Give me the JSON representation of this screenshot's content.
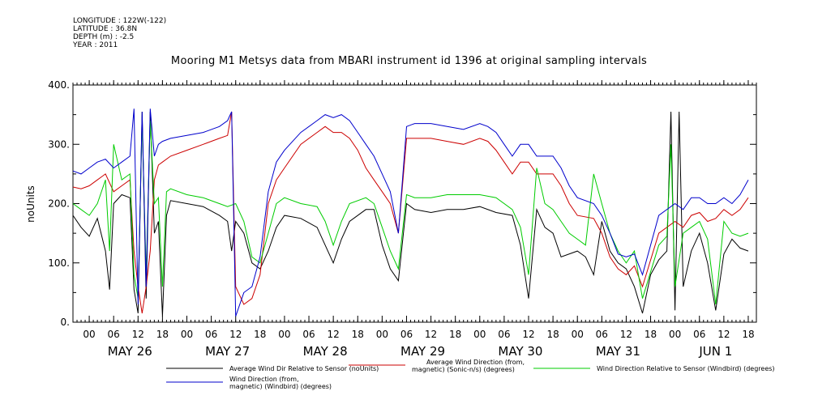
{
  "meta_lines": [
    "LONGITUDE : 122W(-122)",
    "LATITUDE : 36.8N",
    "DEPTH (m) : -2.5",
    "YEAR : 2011"
  ],
  "chart_data": {
    "type": "line",
    "title": "Mooring M1 Metsys data from MBARI instrument id 1396 at original sampling intervals",
    "ylabel": "noUnits",
    "ylim": [
      0,
      400
    ],
    "yticks": [
      0,
      100,
      200,
      300,
      400
    ],
    "ytick_labels": [
      "0.",
      "100.",
      "200.",
      "300.",
      "400."
    ],
    "xlim_hours": [
      -4,
      164
    ],
    "hour_tick_labels": [
      "00",
      "06",
      "12",
      "18",
      "00",
      "06",
      "12",
      "18",
      "00",
      "06",
      "12",
      "18",
      "00",
      "06",
      "12",
      "18",
      "00",
      "06",
      "12",
      "18",
      "00",
      "06",
      "12",
      "18",
      "00",
      "06",
      "12",
      "18"
    ],
    "day_labels": [
      "MAY 26",
      "MAY 27",
      "MAY 28",
      "MAY 29",
      "MAY 30",
      "MAY 31",
      "JUN  1"
    ],
    "series": [
      {
        "name": "Average Wind Dir Relative to Sensor (noUnits)",
        "color": "#000000",
        "points": [
          [
            -4,
            180
          ],
          [
            -2,
            160
          ],
          [
            0,
            145
          ],
          [
            2,
            175
          ],
          [
            4,
            120
          ],
          [
            5,
            55
          ],
          [
            6,
            200
          ],
          [
            8,
            215
          ],
          [
            10,
            210
          ],
          [
            11,
            55
          ],
          [
            12,
            15
          ],
          [
            13,
            355
          ],
          [
            14,
            40
          ],
          [
            15,
            355
          ],
          [
            16,
            150
          ],
          [
            17,
            170
          ],
          [
            18,
            10
          ],
          [
            19,
            180
          ],
          [
            20,
            205
          ],
          [
            24,
            200
          ],
          [
            28,
            195
          ],
          [
            32,
            180
          ],
          [
            34,
            170
          ],
          [
            35,
            120
          ],
          [
            36,
            170
          ],
          [
            38,
            150
          ],
          [
            40,
            100
          ],
          [
            42,
            90
          ],
          [
            44,
            120
          ],
          [
            46,
            160
          ],
          [
            48,
            180
          ],
          [
            52,
            175
          ],
          [
            56,
            160
          ],
          [
            58,
            130
          ],
          [
            60,
            100
          ],
          [
            62,
            140
          ],
          [
            64,
            170
          ],
          [
            68,
            190
          ],
          [
            70,
            190
          ],
          [
            72,
            130
          ],
          [
            74,
            90
          ],
          [
            76,
            70
          ],
          [
            78,
            200
          ],
          [
            80,
            190
          ],
          [
            84,
            185
          ],
          [
            88,
            190
          ],
          [
            92,
            190
          ],
          [
            96,
            195
          ],
          [
            100,
            185
          ],
          [
            104,
            180
          ],
          [
            106,
            130
          ],
          [
            108,
            40
          ],
          [
            110,
            190
          ],
          [
            112,
            160
          ],
          [
            114,
            150
          ],
          [
            116,
            110
          ],
          [
            120,
            120
          ],
          [
            122,
            110
          ],
          [
            124,
            80
          ],
          [
            126,
            170
          ],
          [
            128,
            120
          ],
          [
            130,
            100
          ],
          [
            132,
            90
          ],
          [
            134,
            60
          ],
          [
            136,
            15
          ],
          [
            138,
            80
          ],
          [
            140,
            105
          ],
          [
            142,
            120
          ],
          [
            143,
            355
          ],
          [
            144,
            20
          ],
          [
            145,
            355
          ],
          [
            146,
            60
          ],
          [
            148,
            120
          ],
          [
            150,
            150
          ],
          [
            152,
            100
          ],
          [
            154,
            20
          ],
          [
            156,
            115
          ],
          [
            158,
            140
          ],
          [
            160,
            125
          ],
          [
            162,
            120
          ]
        ]
      },
      {
        "name": "Average Wind Direction (from, magnetic) (Sonic-n/s) (degrees)",
        "color": "#cc0000",
        "points": [
          [
            -4,
            228
          ],
          [
            -2,
            225
          ],
          [
            0,
            230
          ],
          [
            2,
            240
          ],
          [
            4,
            250
          ],
          [
            6,
            220
          ],
          [
            8,
            230
          ],
          [
            10,
            240
          ],
          [
            11,
            120
          ],
          [
            12,
            60
          ],
          [
            13,
            15
          ],
          [
            14,
            60
          ],
          [
            15,
            120
          ],
          [
            16,
            240
          ],
          [
            17,
            265
          ],
          [
            18,
            270
          ],
          [
            20,
            280
          ],
          [
            24,
            290
          ],
          [
            28,
            300
          ],
          [
            32,
            310
          ],
          [
            34,
            315
          ],
          [
            35,
            355
          ],
          [
            36,
            60
          ],
          [
            38,
            30
          ],
          [
            40,
            40
          ],
          [
            42,
            80
          ],
          [
            44,
            200
          ],
          [
            46,
            240
          ],
          [
            48,
            260
          ],
          [
            52,
            300
          ],
          [
            56,
            320
          ],
          [
            58,
            330
          ],
          [
            60,
            320
          ],
          [
            62,
            320
          ],
          [
            64,
            310
          ],
          [
            66,
            290
          ],
          [
            68,
            260
          ],
          [
            70,
            240
          ],
          [
            72,
            220
          ],
          [
            74,
            200
          ],
          [
            76,
            150
          ],
          [
            78,
            310
          ],
          [
            80,
            310
          ],
          [
            84,
            310
          ],
          [
            88,
            305
          ],
          [
            92,
            300
          ],
          [
            96,
            310
          ],
          [
            98,
            305
          ],
          [
            100,
            290
          ],
          [
            102,
            270
          ],
          [
            104,
            250
          ],
          [
            106,
            270
          ],
          [
            108,
            270
          ],
          [
            110,
            250
          ],
          [
            114,
            250
          ],
          [
            116,
            230
          ],
          [
            118,
            200
          ],
          [
            120,
            180
          ],
          [
            124,
            175
          ],
          [
            126,
            150
          ],
          [
            128,
            110
          ],
          [
            130,
            90
          ],
          [
            132,
            80
          ],
          [
            134,
            95
          ],
          [
            136,
            60
          ],
          [
            140,
            150
          ],
          [
            144,
            170
          ],
          [
            146,
            160
          ],
          [
            148,
            180
          ],
          [
            150,
            185
          ],
          [
            152,
            170
          ],
          [
            154,
            175
          ],
          [
            156,
            190
          ],
          [
            158,
            180
          ],
          [
            160,
            190
          ],
          [
            162,
            210
          ]
        ]
      },
      {
        "name": "Wind Direction Relative to Sensor (Windbird) (degrees)",
        "color": "#00cc00",
        "points": [
          [
            -4,
            200
          ],
          [
            -2,
            190
          ],
          [
            0,
            180
          ],
          [
            2,
            200
          ],
          [
            4,
            240
          ],
          [
            5,
            120
          ],
          [
            6,
            300
          ],
          [
            8,
            240
          ],
          [
            10,
            250
          ],
          [
            11,
            80
          ],
          [
            12,
            40
          ],
          [
            13,
            340
          ],
          [
            14,
            80
          ],
          [
            15,
            340
          ],
          [
            16,
            200
          ],
          [
            17,
            210
          ],
          [
            18,
            60
          ],
          [
            19,
            220
          ],
          [
            20,
            225
          ],
          [
            24,
            215
          ],
          [
            28,
            210
          ],
          [
            32,
            200
          ],
          [
            34,
            195
          ],
          [
            36,
            200
          ],
          [
            38,
            170
          ],
          [
            40,
            110
          ],
          [
            42,
            100
          ],
          [
            44,
            150
          ],
          [
            46,
            200
          ],
          [
            48,
            210
          ],
          [
            52,
            200
          ],
          [
            56,
            195
          ],
          [
            58,
            170
          ],
          [
            60,
            130
          ],
          [
            62,
            170
          ],
          [
            64,
            200
          ],
          [
            68,
            210
          ],
          [
            70,
            200
          ],
          [
            72,
            160
          ],
          [
            74,
            120
          ],
          [
            76,
            90
          ],
          [
            78,
            215
          ],
          [
            80,
            210
          ],
          [
            84,
            210
          ],
          [
            88,
            215
          ],
          [
            92,
            215
          ],
          [
            96,
            215
          ],
          [
            100,
            210
          ],
          [
            104,
            190
          ],
          [
            106,
            160
          ],
          [
            108,
            80
          ],
          [
            110,
            260
          ],
          [
            112,
            200
          ],
          [
            114,
            190
          ],
          [
            116,
            170
          ],
          [
            118,
            150
          ],
          [
            120,
            140
          ],
          [
            122,
            130
          ],
          [
            124,
            250
          ],
          [
            126,
            200
          ],
          [
            128,
            150
          ],
          [
            130,
            120
          ],
          [
            132,
            100
          ],
          [
            134,
            120
          ],
          [
            136,
            40
          ],
          [
            140,
            130
          ],
          [
            142,
            145
          ],
          [
            143,
            300
          ],
          [
            144,
            60
          ],
          [
            146,
            150
          ],
          [
            148,
            160
          ],
          [
            150,
            170
          ],
          [
            152,
            140
          ],
          [
            154,
            30
          ],
          [
            156,
            170
          ],
          [
            158,
            150
          ],
          [
            160,
            145
          ],
          [
            162,
            150
          ]
        ]
      },
      {
        "name": "Wind Direction (from, magnetic) (Windbird) (degrees)",
        "color": "#0000cc",
        "points": [
          [
            -4,
            255
          ],
          [
            -2,
            250
          ],
          [
            0,
            260
          ],
          [
            2,
            270
          ],
          [
            4,
            275
          ],
          [
            6,
            260
          ],
          [
            8,
            270
          ],
          [
            10,
            280
          ],
          [
            11,
            360
          ],
          [
            12,
            30
          ],
          [
            13,
            355
          ],
          [
            14,
            60
          ],
          [
            15,
            360
          ],
          [
            16,
            280
          ],
          [
            17,
            300
          ],
          [
            18,
            305
          ],
          [
            20,
            310
          ],
          [
            24,
            315
          ],
          [
            28,
            320
          ],
          [
            32,
            330
          ],
          [
            34,
            340
          ],
          [
            35,
            355
          ],
          [
            36,
            10
          ],
          [
            38,
            50
          ],
          [
            40,
            60
          ],
          [
            42,
            110
          ],
          [
            44,
            220
          ],
          [
            46,
            270
          ],
          [
            48,
            290
          ],
          [
            52,
            320
          ],
          [
            56,
            340
          ],
          [
            58,
            350
          ],
          [
            60,
            345
          ],
          [
            62,
            350
          ],
          [
            64,
            340
          ],
          [
            66,
            320
          ],
          [
            68,
            300
          ],
          [
            70,
            280
          ],
          [
            72,
            250
          ],
          [
            74,
            220
          ],
          [
            76,
            150
          ],
          [
            78,
            330
          ],
          [
            80,
            335
          ],
          [
            84,
            335
          ],
          [
            88,
            330
          ],
          [
            92,
            325
          ],
          [
            96,
            335
          ],
          [
            98,
            330
          ],
          [
            100,
            320
          ],
          [
            102,
            300
          ],
          [
            104,
            280
          ],
          [
            106,
            300
          ],
          [
            108,
            300
          ],
          [
            110,
            280
          ],
          [
            114,
            280
          ],
          [
            116,
            260
          ],
          [
            118,
            230
          ],
          [
            120,
            210
          ],
          [
            124,
            200
          ],
          [
            126,
            180
          ],
          [
            128,
            150
          ],
          [
            130,
            115
          ],
          [
            132,
            110
          ],
          [
            134,
            115
          ],
          [
            136,
            80
          ],
          [
            140,
            180
          ],
          [
            144,
            200
          ],
          [
            146,
            190
          ],
          [
            148,
            210
          ],
          [
            150,
            210
          ],
          [
            152,
            200
          ],
          [
            154,
            200
          ],
          [
            156,
            210
          ],
          [
            158,
            200
          ],
          [
            160,
            215
          ],
          [
            162,
            240
          ]
        ]
      }
    ],
    "legend": [
      {
        "line1": "Average Wind Dir Relative to Sensor (noUnits)",
        "line2": "",
        "color": "#000000"
      },
      {
        "line1": "Average Wind Direction (from,",
        "line2": "magnetic) (Sonic-n/s) (degrees)",
        "color": "#cc0000"
      },
      {
        "line1": "Wind Direction Relative to Sensor (Windbird) (degrees)",
        "line2": "",
        "color": "#00cc00"
      },
      {
        "line1": "Wind Direction (from,",
        "line2": "magnetic) (Windbird) (degrees)",
        "color": "#0000cc"
      }
    ]
  }
}
